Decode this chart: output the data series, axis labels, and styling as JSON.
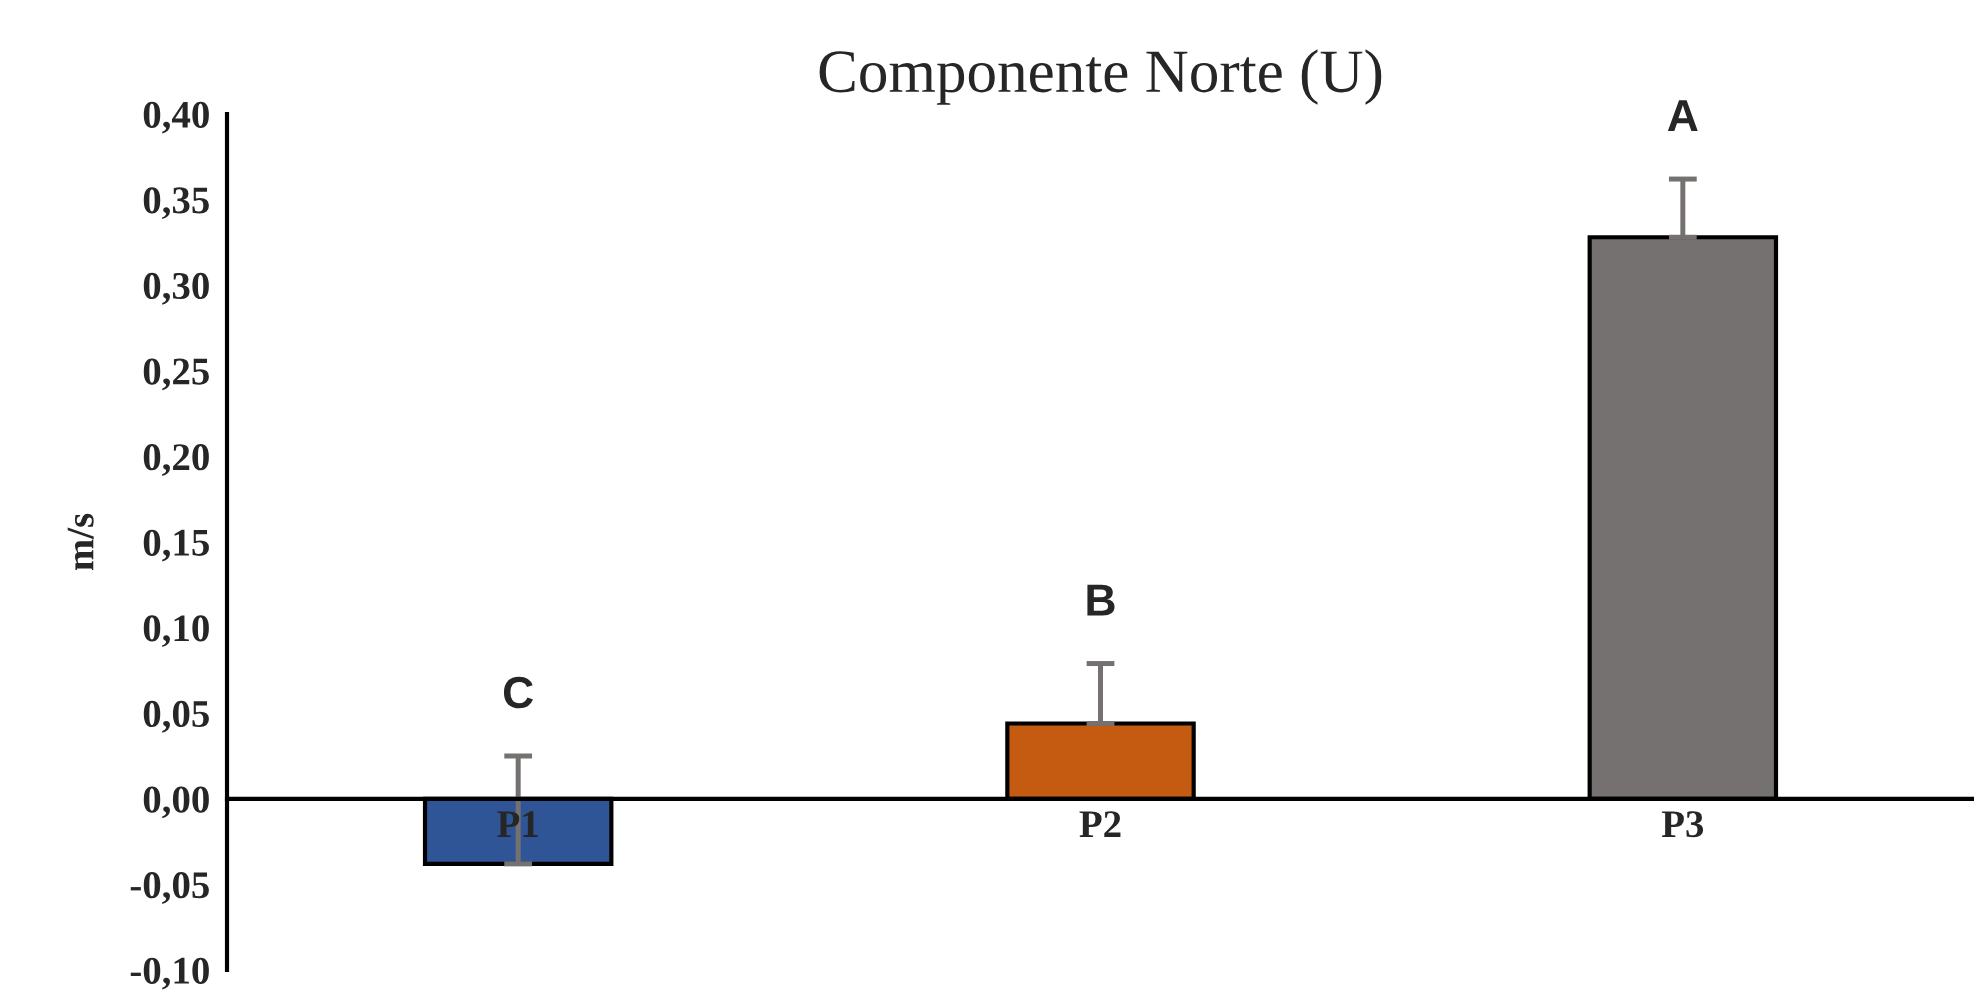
{
  "chart_data": {
    "type": "bar",
    "title": "Componente Norte (U)",
    "ylabel": "m/s",
    "categories": [
      "P1",
      "P2",
      "P3"
    ],
    "values": [
      -0.038,
      0.044,
      0.328
    ],
    "colors": [
      "#2f5597",
      "#c55a11",
      "#767171"
    ],
    "errors": [
      [
        -0.038,
        0.025
      ],
      [
        0.044,
        0.079
      ],
      [
        0.328,
        0.362
      ]
    ],
    "ylim": [
      -0.1,
      0.4
    ],
    "yticks": [
      {
        "value": -0.1,
        "label": "-0,10"
      },
      {
        "value": -0.05,
        "label": "-0,05"
      },
      {
        "value": 0,
        "label": "0,00"
      },
      {
        "value": 0.05,
        "label": "0,05"
      },
      {
        "value": 0.1,
        "label": "0,10"
      },
      {
        "value": 0.15,
        "label": "0,15"
      },
      {
        "value": 0.2,
        "label": "0,20"
      },
      {
        "value": 0.25,
        "label": "0,25"
      },
      {
        "value": 0.3,
        "label": "0,30"
      },
      {
        "value": 0.35,
        "label": "0,35"
      },
      {
        "value": 0.4,
        "label": "0,40"
      }
    ],
    "annotations": [
      "C",
      "B",
      "A"
    ],
    "grid": false,
    "legend": false
  }
}
